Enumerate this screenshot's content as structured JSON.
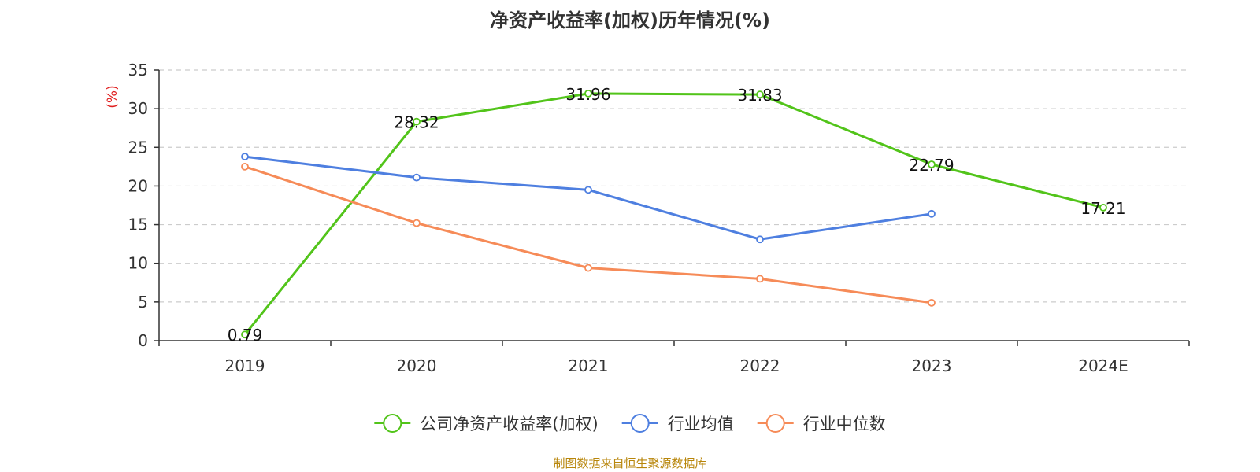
{
  "chart_data": {
    "type": "line",
    "title": "净资产收益率(加权)历年情况(%)",
    "ylabel": "(%)",
    "ylim": [
      0,
      35
    ],
    "yticks": [
      0,
      5,
      10,
      15,
      20,
      25,
      30,
      35
    ],
    "categories": [
      "2019",
      "2020",
      "2021",
      "2022",
      "2023",
      "2024E"
    ],
    "grid": true,
    "legend_position": "bottom",
    "series": [
      {
        "name": "公司净资产收益率(加权)",
        "color": "#52c41a",
        "values": [
          0.79,
          28.32,
          31.96,
          31.83,
          22.79,
          17.21
        ],
        "show_labels": true
      },
      {
        "name": "行业均值",
        "color": "#4e7fe0",
        "values": [
          23.8,
          21.1,
          19.5,
          13.1,
          16.4,
          null
        ],
        "show_labels": false
      },
      {
        "name": "行业中位数",
        "color": "#f68b58",
        "values": [
          22.5,
          15.2,
          9.4,
          8.0,
          4.9,
          null
        ],
        "show_labels": false
      }
    ]
  },
  "footer": {
    "source": "制图数据来自恒生聚源数据库"
  }
}
